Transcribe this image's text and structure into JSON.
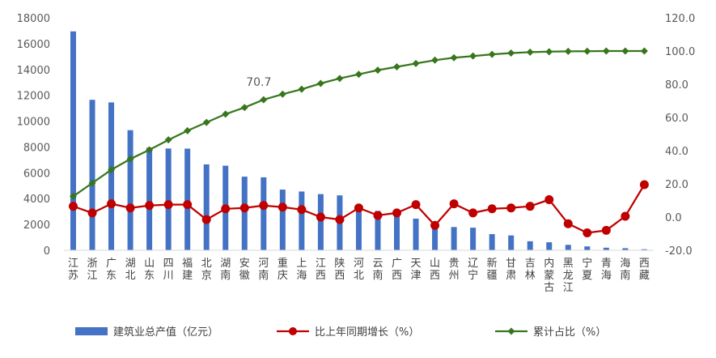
{
  "chart_data": {
    "type": "bar",
    "categories": [
      "江苏",
      "浙江",
      "广东",
      "湖北",
      "山东",
      "四川",
      "福建",
      "北京",
      "湖南",
      "安徽",
      "河南",
      "重庆",
      "上海",
      "江西",
      "陕西",
      "河北",
      "云南",
      "广西",
      "天津",
      "山西",
      "贵州",
      "辽宁",
      "新疆",
      "甘肃",
      "吉林",
      "内蒙古",
      "黑龙江",
      "宁夏",
      "青海",
      "海南",
      "西藏"
    ],
    "series": [
      {
        "name": "建筑业总产值（亿元）",
        "type": "bar",
        "axis": "left",
        "color": "#4472C4",
        "values": [
          16950,
          11650,
          11450,
          9300,
          7950,
          7880,
          7870,
          6650,
          6550,
          5700,
          5650,
          4700,
          4550,
          4350,
          4250,
          3100,
          3050,
          2850,
          2450,
          2100,
          1800,
          1750,
          1250,
          1150,
          700,
          620,
          420,
          300,
          200,
          160,
          80
        ]
      },
      {
        "name": "比上年同期增长（%）",
        "type": "line",
        "axis": "right",
        "color": "#C00000",
        "values": [
          6.5,
          2.5,
          8.0,
          5.5,
          7.0,
          7.5,
          7.5,
          -1.5,
          5.0,
          5.5,
          7.0,
          6.0,
          4.5,
          0.0,
          -1.5,
          5.5,
          1.0,
          2.5,
          7.5,
          -5.0,
          8.0,
          2.5,
          5.0,
          5.5,
          6.5,
          10.5,
          -4.0,
          -9.5,
          -8.0,
          0.5,
          19.5
        ]
      },
      {
        "name": "累计占比（%）",
        "type": "line",
        "axis": "right",
        "color": "#38761D",
        "values": [
          12.5,
          20.5,
          28.5,
          35.0,
          40.5,
          46.5,
          52.0,
          57.0,
          62.0,
          66.0,
          70.7,
          74.0,
          77.0,
          80.5,
          83.5,
          86.0,
          88.5,
          90.5,
          92.5,
          94.5,
          96.0,
          97.0,
          98.0,
          98.8,
          99.3,
          99.6,
          99.8,
          99.9,
          100.0,
          100.0,
          100.0
        ]
      }
    ],
    "y_left": {
      "min": 0,
      "max": 18000,
      "ticks": [
        "0",
        "2000",
        "4000",
        "6000",
        "8000",
        "10000",
        "12000",
        "14000",
        "16000",
        "18000"
      ]
    },
    "y_right": {
      "min": -20,
      "max": 120,
      "ticks": [
        "-20.0",
        "0.0",
        "20.0",
        "40.0",
        "60.0",
        "80.0",
        "100.0",
        "120.0"
      ]
    },
    "annotations": [
      {
        "series": 2,
        "index": 10,
        "text": "70.7"
      }
    ],
    "legend_position": "bottom",
    "grid": false
  },
  "legend": [
    {
      "label": "建筑业总产值（亿元）",
      "kind": "bar",
      "color": "#4472C4"
    },
    {
      "label": "比上年同期增长（%）",
      "kind": "line-circle",
      "color": "#C00000"
    },
    {
      "label": "累计占比（%）",
      "kind": "line-diamond",
      "color": "#38761D"
    }
  ]
}
